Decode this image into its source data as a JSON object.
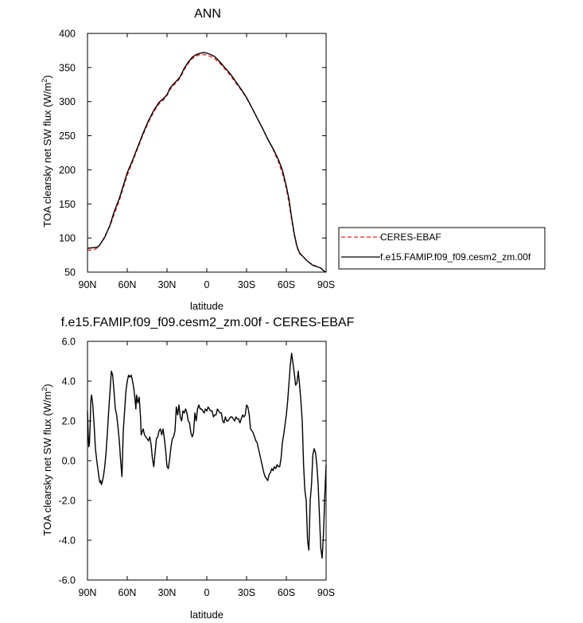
{
  "chart_data": [
    {
      "type": "line",
      "title": "ANN",
      "xlabel": "latitude",
      "ylabel": "TOA clearsky net SW flux (W/m",
      "ylabel_sup": "2",
      "ylabel_end": ")",
      "xlim": [
        90,
        -90
      ],
      "ylim": [
        50,
        400
      ],
      "x_ticks": [
        {
          "value": 90,
          "label": "90N"
        },
        {
          "value": 60,
          "label": "60N"
        },
        {
          "value": 30,
          "label": "30N"
        },
        {
          "value": 0,
          "label": "0"
        },
        {
          "value": -30,
          "label": "30S"
        },
        {
          "value": -60,
          "label": "60S"
        },
        {
          "value": -90,
          "label": "90S"
        }
      ],
      "y_ticks": [
        {
          "value": 400,
          "label": "400"
        },
        {
          "value": 350,
          "label": "350"
        },
        {
          "value": 300,
          "label": "300"
        },
        {
          "value": 250,
          "label": "250"
        },
        {
          "value": 200,
          "label": "200"
        },
        {
          "value": 150,
          "label": "150"
        },
        {
          "value": 100,
          "label": "100"
        },
        {
          "value": 50,
          "label": "50"
        }
      ],
      "legend_position": "right",
      "series": [
        {
          "name": "CERES-EBAF",
          "color": "#ee2222",
          "dash": "dashed",
          "x": [
            90,
            85,
            82,
            80,
            77,
            73,
            70,
            66,
            62,
            60,
            56,
            52,
            48,
            44,
            40,
            36,
            33,
            30,
            28,
            26,
            24,
            22,
            20,
            17,
            14,
            11,
            8,
            5,
            2,
            0,
            -3,
            -6,
            -10,
            -14,
            -18,
            -22,
            -26,
            -30,
            -34,
            -38,
            -42,
            -46,
            -50,
            -54,
            -57,
            -60,
            -62,
            -64,
            -66,
            -68,
            -70,
            -72,
            -74,
            -76,
            -78,
            -80,
            -83,
            -86,
            -88,
            -90
          ],
          "y": [
            82,
            83,
            86,
            92,
            102,
            118,
            134,
            155,
            180,
            192,
            212,
            232,
            252,
            270,
            285,
            297,
            302,
            309,
            317,
            322,
            326,
            330,
            335,
            347,
            356,
            363,
            367,
            369,
            369,
            368,
            366,
            363,
            356,
            347,
            338,
            327,
            317,
            305,
            291,
            276,
            261,
            245,
            230,
            212,
            195,
            173,
            152,
            127,
            104,
            87,
            77,
            74,
            70,
            66,
            63,
            61,
            58,
            56,
            52,
            50
          ]
        },
        {
          "name": "f.e15.FAMIP.f09_f09.cesm2_zm.00f",
          "color": "#000000",
          "dash": "solid",
          "x": [
            90,
            85,
            82,
            80,
            77,
            73,
            70,
            66,
            62,
            60,
            56,
            52,
            48,
            44,
            40,
            36,
            33,
            30,
            28,
            26,
            24,
            22,
            20,
            17,
            14,
            11,
            8,
            5,
            2,
            0,
            -3,
            -6,
            -10,
            -14,
            -18,
            -22,
            -26,
            -30,
            -34,
            -38,
            -42,
            -46,
            -50,
            -54,
            -57,
            -60,
            -62,
            -64,
            -66,
            -68,
            -70,
            -72,
            -74,
            -76,
            -78,
            -80,
            -83,
            -86,
            -88,
            -90
          ],
          "y": [
            85,
            86,
            87,
            92,
            101,
            119,
            138,
            158,
            183,
            196,
            214,
            234,
            254,
            272,
            287,
            299,
            304,
            310,
            319,
            324,
            328,
            332,
            337,
            349,
            358,
            365,
            369,
            371,
            372,
            371,
            369,
            366,
            358,
            349,
            340,
            329,
            318,
            306,
            291,
            276,
            261,
            245,
            231,
            215,
            200,
            176,
            157,
            130,
            106,
            88,
            78,
            74,
            70,
            66,
            63,
            60,
            58,
            56,
            52,
            50
          ]
        }
      ]
    },
    {
      "type": "line",
      "title": "f.e15.FAMIP.f09_f09.cesm2_zm.00f - CERES-EBAF",
      "xlabel": "latitude",
      "ylabel": "TOA clearsky net SW flux (W/m",
      "ylabel_sup": "2",
      "ylabel_end": ")",
      "xlim": [
        90,
        -90
      ],
      "ylim": [
        -6,
        6
      ],
      "x_ticks": [
        {
          "value": 90,
          "label": "90N"
        },
        {
          "value": 60,
          "label": "60N"
        },
        {
          "value": 30,
          "label": "30N"
        },
        {
          "value": 0,
          "label": "0"
        },
        {
          "value": -30,
          "label": "30S"
        },
        {
          "value": -60,
          "label": "60S"
        },
        {
          "value": -90,
          "label": "90S"
        }
      ],
      "y_ticks": [
        {
          "value": 6,
          "label": "6.0"
        },
        {
          "value": 4,
          "label": "4.0"
        },
        {
          "value": 2,
          "label": "2.0"
        },
        {
          "value": 0,
          "label": "0.0"
        },
        {
          "value": -2,
          "label": "-2.0"
        },
        {
          "value": -4,
          "label": "-4.0"
        },
        {
          "value": -6,
          "label": "-6.0"
        }
      ],
      "series": [
        {
          "name": "f.e15.FAMIP.f09_f09.cesm2_zm.00f - CERES-EBAF",
          "color": "#000000",
          "dash": "solid",
          "x": [
            90,
            89.5,
            89,
            88.5,
            88,
            87.5,
            87,
            86.5,
            86,
            85,
            84,
            83,
            82,
            81,
            80.5,
            80,
            79.5,
            79,
            78,
            77,
            76,
            75,
            74,
            73,
            72,
            71,
            70,
            69,
            68,
            67,
            66,
            65,
            64,
            63,
            62,
            61,
            60,
            59,
            58,
            57,
            56,
            55,
            54,
            53.5,
            53,
            52,
            51,
            50,
            49.5,
            49,
            48,
            47,
            46,
            45,
            44,
            43,
            42,
            41,
            40,
            39,
            38,
            37,
            36,
            35,
            34,
            33,
            32,
            31,
            30,
            29,
            28,
            27,
            26,
            25,
            24,
            23,
            22,
            21,
            20,
            19,
            18,
            17,
            16,
            15,
            14,
            13,
            12,
            11,
            10,
            9,
            8,
            7,
            6,
            5,
            4,
            3,
            2,
            1,
            0,
            -1,
            -2,
            -3,
            -4,
            -5,
            -6,
            -7,
            -8,
            -9,
            -10,
            -11,
            -12,
            -13,
            -14,
            -15,
            -16,
            -17,
            -18,
            -19,
            -20,
            -21,
            -22,
            -23,
            -24,
            -25,
            -26,
            -27,
            -28,
            -29,
            -30,
            -31,
            -32,
            -33,
            -34,
            -35,
            -36,
            -37,
            -38,
            -39,
            -40,
            -41,
            -42,
            -43,
            -44,
            -45,
            -46,
            -47,
            -48,
            -49,
            -50,
            -51,
            -52,
            -53,
            -54,
            -55,
            -56,
            -57,
            -58,
            -59,
            -60,
            -61,
            -62,
            -63,
            -64,
            -65,
            -66,
            -67,
            -68,
            -69,
            -70,
            -71,
            -72,
            -73,
            -74,
            -75,
            -76,
            -77,
            -78,
            -79,
            -80,
            -81,
            -82,
            -83,
            -84,
            -85,
            -86,
            -87,
            -88,
            -89,
            -90
          ],
          "y": [
            2.5,
            1.4,
            0.7,
            0.9,
            1.8,
            3.0,
            3.3,
            3.1,
            2.8,
            1.8,
            0.6,
            0.0,
            -0.5,
            -1.0,
            -1.1,
            -1.0,
            -1.2,
            -1.1,
            -0.8,
            -0.3,
            0.4,
            1.4,
            2.5,
            3.5,
            4.5,
            4.3,
            3.5,
            2.6,
            2.3,
            1.7,
            1.0,
            0.0,
            -0.8,
            1.5,
            2.5,
            3.5,
            4.0,
            4.3,
            4.2,
            4.3,
            4.0,
            3.6,
            3.0,
            2.6,
            3.3,
            2.9,
            3.2,
            2.2,
            1.3,
            1.4,
            1.6,
            1.3,
            1.2,
            1.1,
            1.0,
            1.2,
            0.8,
            0.1,
            -0.3,
            0.4,
            1.1,
            1.2,
            1.5,
            1.6,
            1.3,
            1.6,
            1.1,
            0.5,
            -0.3,
            -0.4,
            0.1,
            0.7,
            1.1,
            1.2,
            1.5,
            2.7,
            2.3,
            2.8,
            2.2,
            2.0,
            2.5,
            2.4,
            2.6,
            2.4,
            2.0,
            1.9,
            1.4,
            1.2,
            1.4,
            2.4,
            2.0,
            2.6,
            2.8,
            2.6,
            2.6,
            2.5,
            2.4,
            2.6,
            2.5,
            2.7,
            2.6,
            2.5,
            2.5,
            2.2,
            2.3,
            2.3,
            2.6,
            2.5,
            2.4,
            2.4,
            2.0,
            1.9,
            2.2,
            2.0,
            2.0,
            2.1,
            2.2,
            2.2,
            2.1,
            2.0,
            2.2,
            2.1,
            2.1,
            1.9,
            2.1,
            2.3,
            2.2,
            2.3,
            2.8,
            2.7,
            2.3,
            1.6,
            1.5,
            1.4,
            1.2,
            1.0,
            0.9,
            0.6,
            0.3,
            0.0,
            -0.3,
            -0.6,
            -0.8,
            -0.9,
            -1.0,
            -0.7,
            -0.6,
            -0.4,
            -0.5,
            -0.3,
            -0.4,
            -0.2,
            -0.3,
            -0.3,
            0.1,
            0.9,
            1.3,
            1.8,
            2.3,
            3.0,
            3.9,
            4.8,
            5.4,
            4.9,
            4.4,
            3.8,
            3.9,
            4.5,
            3.8,
            3.0,
            2.0,
            -0.2,
            -1.5,
            -2.0,
            -4.0,
            -4.5,
            -2.0,
            -1.2,
            0.3,
            0.6,
            0.4,
            -0.2,
            -1.2,
            -2.8,
            -4.4,
            -4.9,
            -3.7,
            -1.8,
            -0.2
          ]
        }
      ]
    }
  ]
}
